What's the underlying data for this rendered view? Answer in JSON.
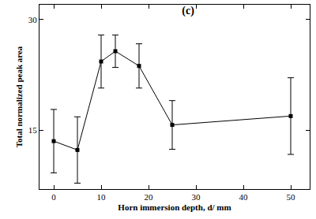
{
  "chart_data": {
    "type": "line",
    "title": "(c)",
    "x_label": "Horn immersion depth, d/ mm",
    "y_label": "Total normalized peak area",
    "x": [
      0,
      5,
      10,
      13,
      18,
      25,
      50
    ],
    "values": [
      13.5,
      12.3,
      24.3,
      25.7,
      23.7,
      15.7,
      16.9
    ],
    "errors": [
      4.3,
      4.5,
      3.6,
      2.2,
      3.0,
      3.3,
      5.2
    ],
    "color": "#000000",
    "marker": "square",
    "line_style": "solid",
    "xlim": [
      -3,
      54
    ],
    "xticks": [
      0,
      10,
      20,
      30,
      40,
      50
    ],
    "ylim": [
      7,
      32
    ],
    "yticks": [
      15,
      30
    ],
    "grid": false
  }
}
